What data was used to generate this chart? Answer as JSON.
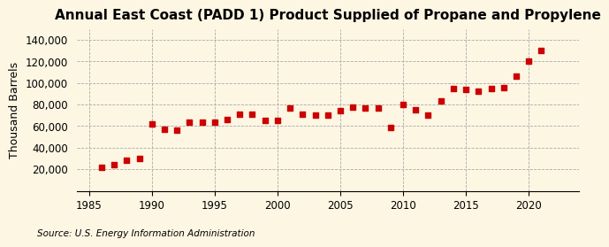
{
  "title": "Annual East Coast (PADD 1) Product Supplied of Propane and Propylene",
  "ylabel": "Thousand Barrels",
  "source": "Source: U.S. Energy Information Administration",
  "background_color": "#fdf6e3",
  "plot_background_color": "#fdf6e3",
  "marker_color": "#cc0000",
  "marker": "s",
  "marker_size": 16,
  "years": [
    1986,
    1987,
    1988,
    1989,
    1990,
    1991,
    1992,
    1993,
    1994,
    1995,
    1996,
    1997,
    1998,
    1999,
    2000,
    2001,
    2002,
    2003,
    2004,
    2005,
    2006,
    2007,
    2008,
    2009,
    2010,
    2011,
    2012,
    2013,
    2014,
    2015,
    2016,
    2017,
    2018,
    2019,
    2020,
    2021
  ],
  "values": [
    22000,
    24000,
    28000,
    30000,
    62000,
    57000,
    56000,
    64000,
    64000,
    64000,
    66000,
    71000,
    71000,
    65000,
    65000,
    77000,
    71000,
    70000,
    70000,
    74000,
    78000,
    77000,
    77000,
    59000,
    80000,
    75000,
    70000,
    83000,
    95000,
    94000,
    92000,
    95000,
    96000,
    106000,
    120000,
    130000
  ],
  "ylim": [
    0,
    150000
  ],
  "yticks": [
    20000,
    40000,
    60000,
    80000,
    100000,
    120000,
    140000
  ],
  "xlim": [
    1984,
    2024
  ],
  "xticks": [
    1985,
    1990,
    1995,
    2000,
    2005,
    2010,
    2015,
    2020
  ],
  "grid_color": "#aaaaaa",
  "title_fontsize": 11,
  "axis_fontsize": 9,
  "tick_fontsize": 8.5
}
